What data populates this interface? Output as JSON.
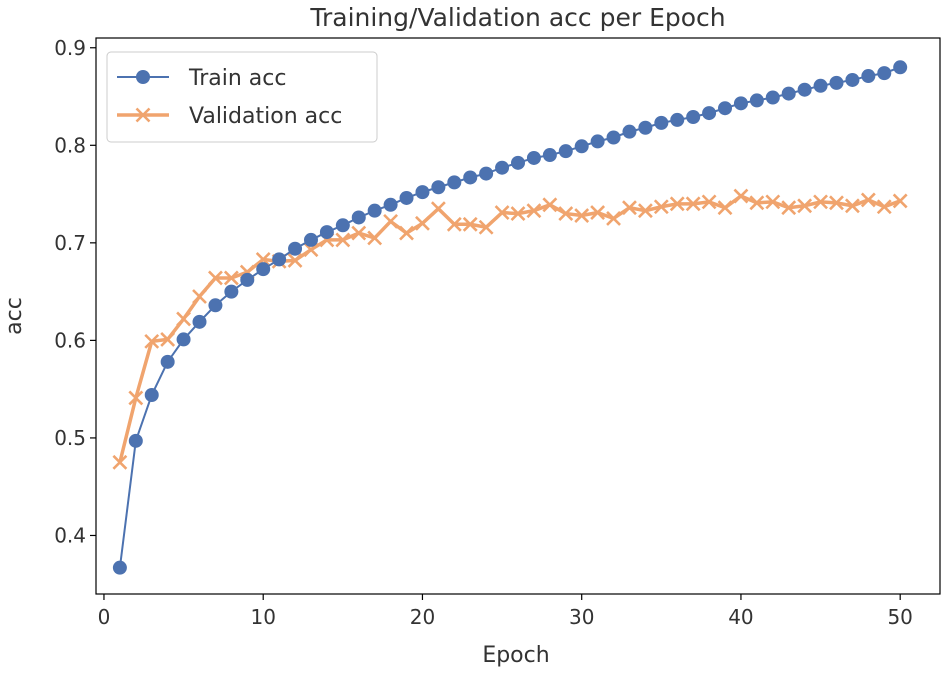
{
  "chart_data": {
    "type": "line",
    "title": "Training/Validation acc per Epoch",
    "xlabel": "Epoch",
    "ylabel": "acc",
    "xlim": [
      -0.5,
      52.5
    ],
    "ylim": [
      0.34,
      0.91
    ],
    "xticks": [
      0,
      10,
      20,
      30,
      40,
      50
    ],
    "yticks": [
      0.4,
      0.5,
      0.6,
      0.7,
      0.8,
      0.9
    ],
    "xtick_labels": [
      "0",
      "10",
      "20",
      "30",
      "40",
      "50"
    ],
    "ytick_labels": [
      "0.4",
      "0.5",
      "0.6",
      "0.7",
      "0.8",
      "0.9"
    ],
    "grid": false,
    "legend_position": "top-left",
    "x": [
      1,
      2,
      3,
      4,
      5,
      6,
      7,
      8,
      9,
      10,
      11,
      12,
      13,
      14,
      15,
      16,
      17,
      18,
      19,
      20,
      21,
      22,
      23,
      24,
      25,
      26,
      27,
      28,
      29,
      30,
      31,
      32,
      33,
      34,
      35,
      36,
      37,
      38,
      39,
      40,
      41,
      42,
      43,
      44,
      45,
      46,
      47,
      48,
      49,
      50
    ],
    "series": [
      {
        "name": "Train acc",
        "color": "#4c72b0",
        "marker": "circle",
        "values": [
          0.367,
          0.497,
          0.544,
          0.578,
          0.601,
          0.619,
          0.636,
          0.65,
          0.662,
          0.673,
          0.683,
          0.694,
          0.703,
          0.711,
          0.718,
          0.726,
          0.733,
          0.739,
          0.746,
          0.752,
          0.757,
          0.762,
          0.767,
          0.771,
          0.777,
          0.782,
          0.787,
          0.79,
          0.794,
          0.799,
          0.804,
          0.808,
          0.814,
          0.818,
          0.823,
          0.826,
          0.829,
          0.833,
          0.838,
          0.843,
          0.846,
          0.849,
          0.853,
          0.857,
          0.861,
          0.864,
          0.867,
          0.871,
          0.874,
          0.88
        ]
      },
      {
        "name": "Validation acc",
        "color": "#f0a46e",
        "marker": "x",
        "values": [
          0.475,
          0.541,
          0.599,
          0.601,
          0.622,
          0.645,
          0.664,
          0.664,
          0.67,
          0.683,
          0.681,
          0.682,
          0.693,
          0.703,
          0.703,
          0.71,
          0.705,
          0.722,
          0.71,
          0.72,
          0.735,
          0.719,
          0.719,
          0.716,
          0.731,
          0.73,
          0.733,
          0.739,
          0.73,
          0.728,
          0.731,
          0.725,
          0.736,
          0.733,
          0.737,
          0.74,
          0.74,
          0.742,
          0.736,
          0.748,
          0.741,
          0.742,
          0.736,
          0.738,
          0.742,
          0.741,
          0.738,
          0.744,
          0.737,
          0.743
        ]
      }
    ]
  }
}
